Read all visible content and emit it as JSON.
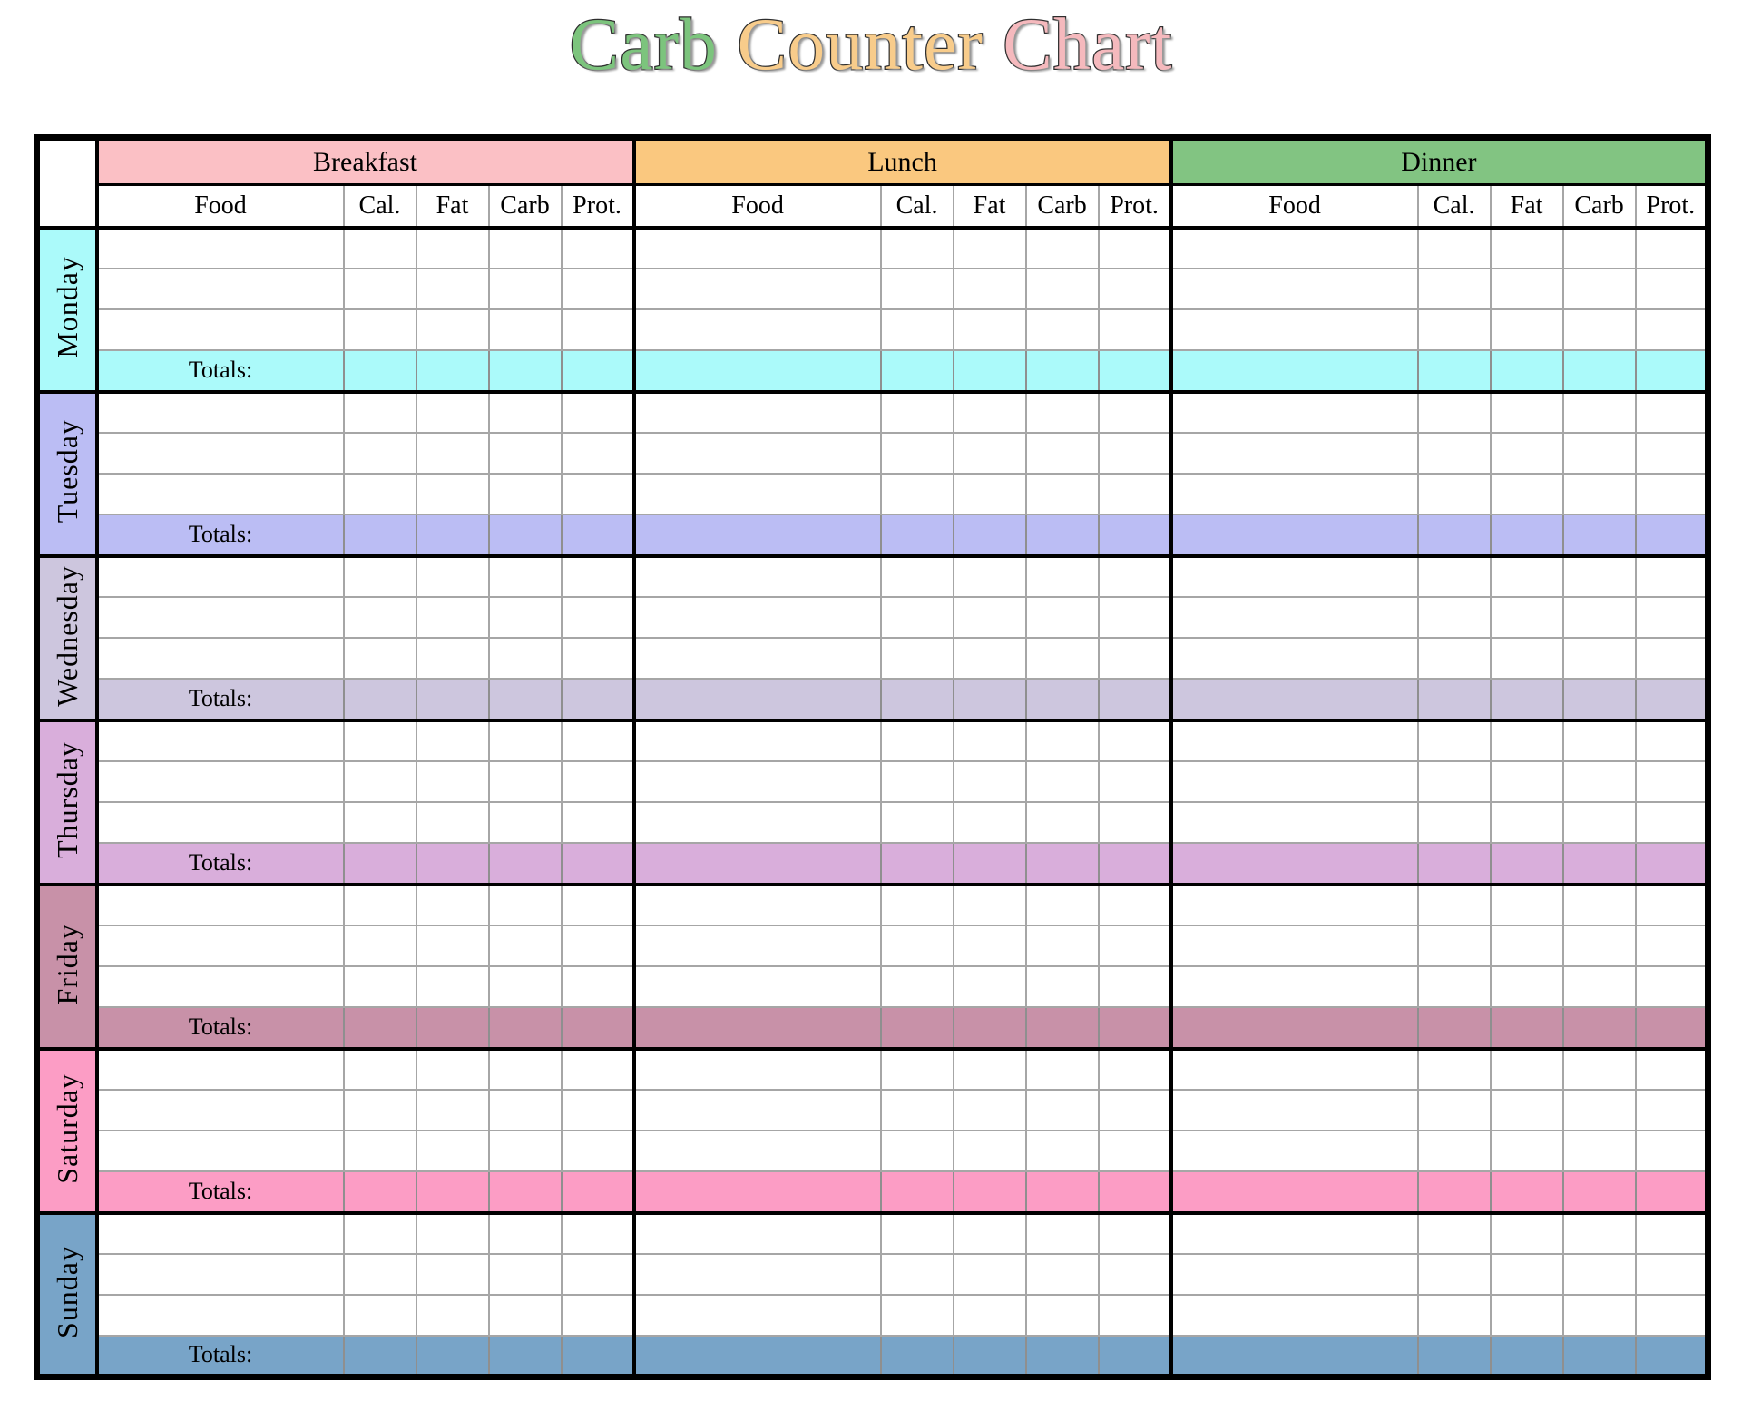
{
  "title": {
    "words": [
      {
        "text": "Carb",
        "color": "#7cc47d"
      },
      {
        "text": "Counter",
        "color": "#f8cc8b"
      },
      {
        "text": "Chart",
        "color": "#f5b9bd"
      }
    ]
  },
  "meals": [
    {
      "label": "Breakfast",
      "color": "#fbc0c5"
    },
    {
      "label": "Lunch",
      "color": "#fac87f"
    },
    {
      "label": "Dinner",
      "color": "#82c482"
    }
  ],
  "columns": [
    "Food",
    "Cal.",
    "Fat",
    "Carb",
    "Prot."
  ],
  "totals_label": "Totals:",
  "rows_per_day": 3,
  "days": [
    {
      "label": "Monday",
      "color": "#abfafa"
    },
    {
      "label": "Tuesday",
      "color": "#bbbdf4"
    },
    {
      "label": "Wednesday",
      "color": "#cdc6de"
    },
    {
      "label": "Thursday",
      "color": "#d9aedb"
    },
    {
      "label": "Friday",
      "color": "#c891a8"
    },
    {
      "label": "Saturday",
      "color": "#fc9dc5"
    },
    {
      "label": "Sunday",
      "color": "#78a4c8"
    }
  ]
}
